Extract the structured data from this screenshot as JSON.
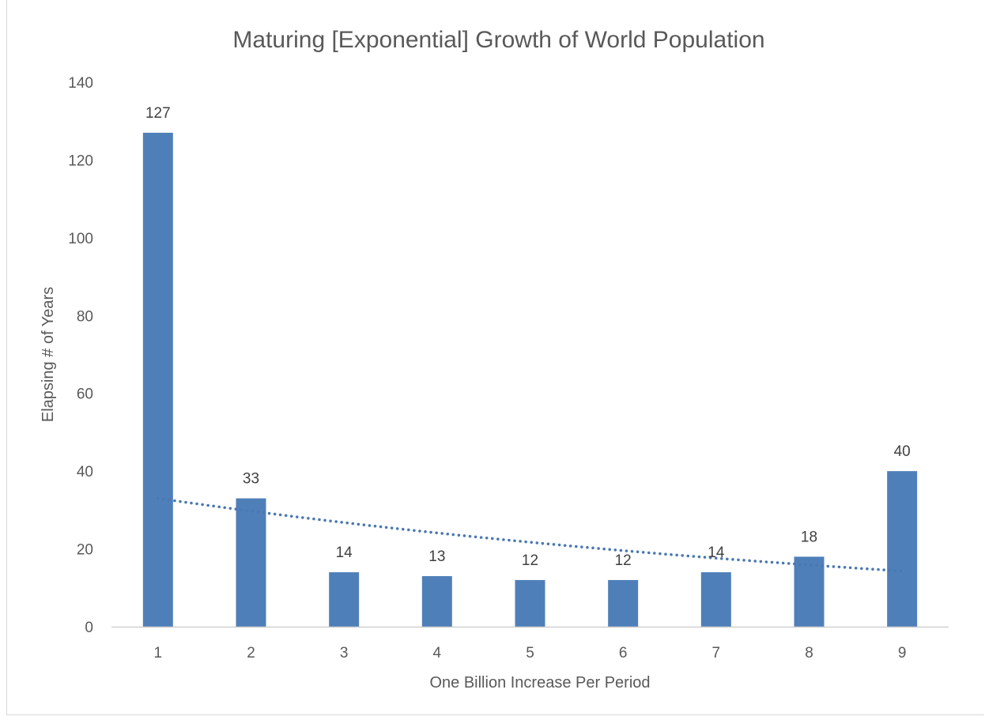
{
  "chart_data": {
    "type": "bar",
    "title": "Maturing  [Exponential] Growth of World Population",
    "xlabel": "One Billion Increase Per Period",
    "ylabel": "Elapsing # of Years",
    "categories": [
      "1",
      "2",
      "3",
      "4",
      "5",
      "6",
      "7",
      "8",
      "9"
    ],
    "values": [
      127,
      33,
      14,
      13,
      12,
      12,
      14,
      18,
      40
    ],
    "data_labels": [
      "127",
      "33",
      "14",
      "13",
      "12",
      "12",
      "14",
      "18",
      "40"
    ],
    "ylim": [
      0,
      140
    ],
    "yticks": [
      0,
      20,
      40,
      60,
      80,
      100,
      120,
      140
    ],
    "grid": false,
    "legend": "none",
    "bar_color": "#4f7fb8",
    "trendline": {
      "type": "exponential",
      "style": "dotted",
      "color": "#4a78b3",
      "start_value": 33,
      "end_value": 14.3
    }
  }
}
